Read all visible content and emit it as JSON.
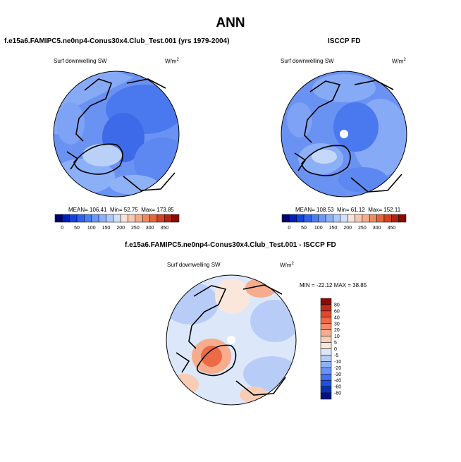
{
  "main_title": "ANN",
  "panels": [
    {
      "title": "f.e15a6.FAMIPC5.ne0np4-Conus30x4.Club_Test.001 (yrs 1979-2004)",
      "variable": "Surf downwelling SW",
      "units": "W/m",
      "units_exp": "2",
      "stats": {
        "mean_label": "MEAN=",
        "mean": "106.41",
        "min_label": "Min=",
        "min": "52.75",
        "max_label": "Max=",
        "max": "173.85"
      }
    },
    {
      "title": "ISCCP FD",
      "variable": "Surf downwelling SW",
      "units": "W/m",
      "units_exp": "2",
      "stats": {
        "mean_label": "MEAN=",
        "mean": "108.53",
        "min_label": "Min=",
        "min": "61.12",
        "max_label": "Max=",
        "max": "152.11"
      }
    },
    {
      "title": "f.e15a6.FAMIPC5.ne0np4-Conus30x4.Club_Test.001 - ISCCP FD",
      "variable": "Surf downwelling SW",
      "units": "W/m",
      "units_exp": "2",
      "stats_text": "MIN = -22.12  MAX =  38.85"
    }
  ],
  "colorbar_abs": {
    "labels": [
      "0",
      "50",
      "100",
      "150",
      "200",
      "250",
      "300",
      "350"
    ],
    "colors": [
      "#00006e",
      "#0020b8",
      "#1244dd",
      "#2e62ee",
      "#4a7ef4",
      "#6b98f6",
      "#8cb1f8",
      "#aec9f9",
      "#d0e0fb",
      "#fae3d6",
      "#f7c9b1",
      "#f3ab8a",
      "#ed8a62",
      "#e5653d",
      "#d3431f",
      "#b02412",
      "#8a0a06"
    ]
  },
  "colorbar_diff": {
    "labels": [
      "80",
      "60",
      "40",
      "30",
      "20",
      "10",
      "5",
      "0",
      "-5",
      "-10",
      "-20",
      "-30",
      "-40",
      "-60",
      "-80"
    ],
    "colors": [
      "#8a0a06",
      "#c42a16",
      "#e0482a",
      "#ec6a46",
      "#f28c66",
      "#f5ad8d",
      "#f8cdb6",
      "#fae6da",
      "#dce8fa",
      "#b7cdf8",
      "#8fb0f6",
      "#6a92f2",
      "#4272ee",
      "#1f50dd",
      "#0a30b5",
      "#00127a"
    ]
  },
  "chart_data": [
    {
      "type": "heatmap",
      "title": "f.e15a6.FAMIPC5.ne0np4-Conus30x4.Club_Test.001 (yrs 1979-2004)",
      "variable": "Surf downwelling SW",
      "units": "W/m2",
      "projection": "polar stereographic (north pole)",
      "colorbar_levels": [
        0,
        50,
        100,
        150,
        200,
        250,
        300,
        350
      ],
      "mean": 106.41,
      "min": 52.75,
      "max": 173.85
    },
    {
      "type": "heatmap",
      "title": "ISCCP FD",
      "variable": "Surf downwelling SW",
      "units": "W/m2",
      "projection": "polar stereographic (north pole)",
      "colorbar_levels": [
        0,
        50,
        100,
        150,
        200,
        250,
        300,
        350
      ],
      "mean": 108.53,
      "min": 61.12,
      "max": 152.11
    },
    {
      "type": "heatmap",
      "title": "f.e15a6.FAMIPC5.ne0np4-Conus30x4.Club_Test.001 - ISCCP FD",
      "variable": "Surf downwelling SW",
      "units": "W/m2",
      "projection": "polar stereographic (north pole)",
      "colorbar_levels": [
        80,
        60,
        40,
        30,
        20,
        10,
        5,
        0,
        -5,
        -10,
        -20,
        -30,
        -40,
        -60,
        -80
      ],
      "min": -22.12,
      "max": 38.85
    }
  ]
}
